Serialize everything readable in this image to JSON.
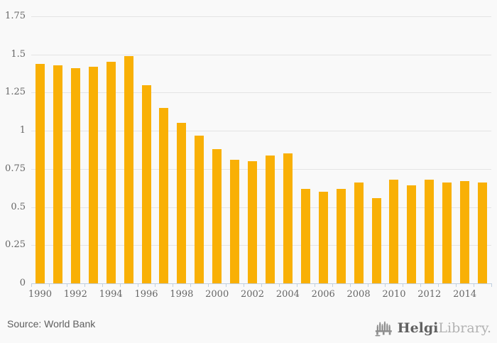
{
  "chart_data": {
    "type": "bar",
    "title": "",
    "categories": [
      "1990",
      "1991",
      "1992",
      "1993",
      "1994",
      "1995",
      "1996",
      "1997",
      "1998",
      "1999",
      "2000",
      "2001",
      "2002",
      "2003",
      "2004",
      "2005",
      "2006",
      "2007",
      "2008",
      "2009",
      "2010",
      "2011",
      "2012",
      "2013",
      "2014",
      "2015"
    ],
    "values": [
      1.44,
      1.43,
      1.41,
      1.42,
      1.45,
      1.49,
      1.3,
      1.15,
      1.05,
      0.97,
      0.88,
      0.81,
      0.8,
      0.84,
      0.85,
      0.62,
      0.6,
      0.62,
      0.66,
      0.56,
      0.68,
      0.64,
      0.68,
      0.66,
      0.67,
      0.66
    ],
    "xlabel": "",
    "ylabel": "",
    "ylim": [
      0,
      1.75
    ],
    "ytick_labels": [
      "0",
      "0.25",
      "0.5",
      "0.75",
      "1",
      "1.25",
      "1.5",
      "1.75"
    ],
    "xtick_labels": [
      "1990",
      "1992",
      "1994",
      "1996",
      "1998",
      "2000",
      "2002",
      "2004",
      "2006",
      "2008",
      "2010",
      "2012",
      "2014"
    ],
    "grid": true,
    "legend": false
  },
  "footer": {
    "source_label": "Source: World Bank"
  },
  "branding": {
    "logo_icon": "helgi-bridge-icon",
    "name_primary": "Helgi",
    "name_secondary": "Library."
  },
  "colors": {
    "background": "#f9f9f9",
    "bar": "#f9b005",
    "gridline": "#e4e4e4",
    "axis": "#c0d0e0",
    "axis_label": "#666666",
    "source_text": "#5e5e5e",
    "logo_primary": "#616161",
    "logo_secondary": "#b2b2b2",
    "logo_icon": "#8d8d8d"
  }
}
